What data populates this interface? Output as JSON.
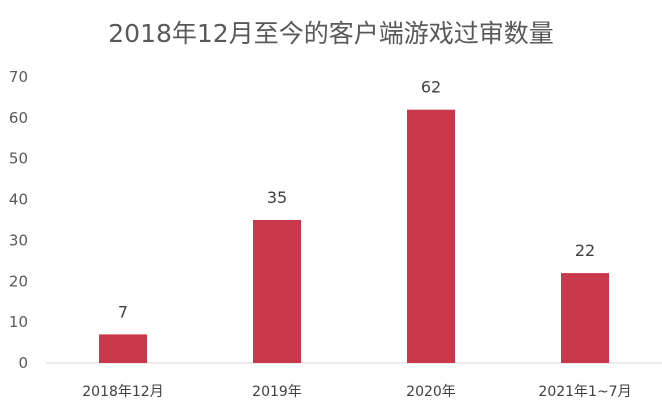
{
  "chart_data": {
    "type": "bar",
    "title": "2018年12月至今的客户端游戏过审数量",
    "categories": [
      "2018年12月",
      "2019年",
      "2020年",
      "2021年1~7月"
    ],
    "values": [
      7,
      35,
      62,
      22
    ],
    "data_labels": [
      "7",
      "35",
      "62",
      "22"
    ],
    "y_ticks": [
      "0",
      "10",
      "20",
      "30",
      "40",
      "50",
      "60",
      "70"
    ],
    "ylim": [
      0,
      70
    ],
    "xlabel": "",
    "ylabel": "",
    "grid": false,
    "legend": "none",
    "bar_color": "#C8374A",
    "axis_color": "#D9D9D9"
  }
}
